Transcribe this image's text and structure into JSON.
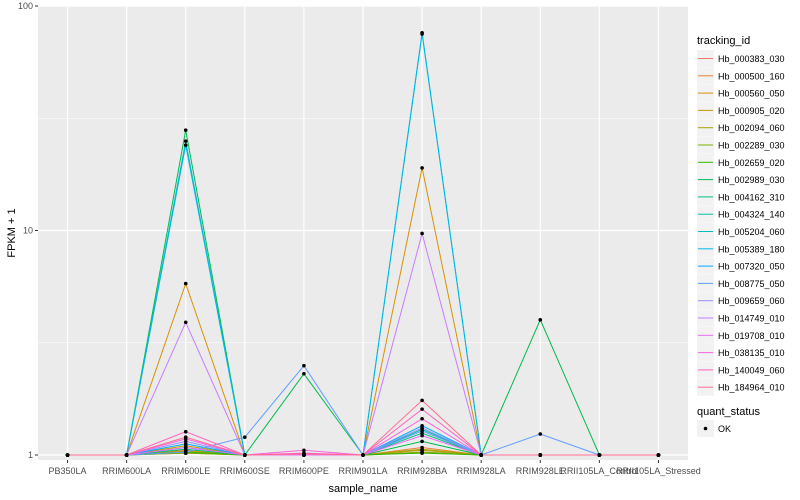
{
  "chart_data": {
    "type": "line",
    "title": "",
    "xlabel": "sample_name",
    "ylabel": "FPKM + 1",
    "y_scale": "log10",
    "ylim": [
      0.95,
      100
    ],
    "y_ticks": [
      {
        "value": 1,
        "label": "1"
      },
      {
        "value": 10,
        "label": "10"
      },
      {
        "value": 100,
        "label": "100"
      }
    ],
    "grid": true,
    "legend_position": "right",
    "categories": [
      "PB350LA",
      "RRIM600LA",
      "RRIM600LE",
      "RRIM600SE",
      "RRIM600PE",
      "RRIM901LA",
      "RRIM928BA",
      "RRIM928LA",
      "RRIM928LE",
      "RRII105LA_Control",
      "RRII105LA_Stressed"
    ],
    "legend_title": "tracking_id",
    "series": [
      {
        "name": "Hb_000383_030",
        "color": "#F8766D",
        "values": [
          1,
          1,
          1.02,
          1,
          1.01,
          1,
          1.03,
          1,
          1,
          1,
          1
        ]
      },
      {
        "name": "Hb_000500_160",
        "color": "#EA8331",
        "values": [
          1,
          1,
          1.05,
          1,
          1,
          1,
          1.08,
          1,
          1,
          1,
          1
        ]
      },
      {
        "name": "Hb_000560_050",
        "color": "#D89000",
        "values": [
          1,
          1,
          5.8,
          1,
          1,
          1,
          19,
          1,
          1,
          1,
          1
        ]
      },
      {
        "name": "Hb_000905_020",
        "color": "#C09B00",
        "values": [
          1,
          1,
          1.1,
          1,
          1,
          1,
          1.05,
          1,
          1,
          1,
          1
        ]
      },
      {
        "name": "Hb_002094_060",
        "color": "#A3A500",
        "values": [
          1,
          1,
          1.04,
          1,
          1,
          1,
          1.06,
          1,
          1,
          1,
          1
        ]
      },
      {
        "name": "Hb_002289_030",
        "color": "#7CAE00",
        "values": [
          1,
          1,
          1.02,
          1,
          1,
          1,
          1.03,
          1,
          1,
          1,
          1
        ]
      },
      {
        "name": "Hb_002659_020",
        "color": "#39B600",
        "values": [
          1,
          1,
          1.03,
          1,
          1,
          1,
          1.02,
          1,
          1,
          1,
          1
        ]
      },
      {
        "name": "Hb_002989_030",
        "color": "#00BB4E",
        "values": [
          1,
          1,
          28,
          1,
          2.3,
          1,
          1.15,
          1,
          4,
          1,
          1
        ]
      },
      {
        "name": "Hb_004162_310",
        "color": "#00BF7D",
        "values": [
          1,
          1,
          1.06,
          1,
          1,
          1,
          1.25,
          1,
          1,
          1,
          1
        ]
      },
      {
        "name": "Hb_004324_140",
        "color": "#00C1A3",
        "values": [
          1,
          1,
          1.08,
          1,
          1,
          1,
          1.3,
          1,
          1,
          1,
          1
        ]
      },
      {
        "name": "Hb_005204_060",
        "color": "#00BFC4",
        "values": [
          1,
          1,
          25,
          1,
          1,
          1,
          75,
          1,
          1,
          1,
          1
        ]
      },
      {
        "name": "Hb_005389_180",
        "color": "#00B8E7",
        "values": [
          1,
          1,
          24,
          1,
          1,
          1,
          76,
          1,
          1,
          1,
          1
        ]
      },
      {
        "name": "Hb_007320_050",
        "color": "#00A9FF",
        "values": [
          1,
          1,
          1.12,
          1,
          1,
          1,
          1.35,
          1,
          1,
          1,
          1
        ]
      },
      {
        "name": "Hb_008775_050",
        "color": "#619CFF",
        "values": [
          1,
          1,
          1.03,
          1.2,
          2.5,
          1,
          1.28,
          1,
          1.24,
          1,
          1
        ]
      },
      {
        "name": "Hb_009659_060",
        "color": "#9590FF",
        "values": [
          1,
          1,
          1.15,
          1,
          1,
          1,
          1.32,
          1,
          1,
          1,
          1
        ]
      },
      {
        "name": "Hb_014749_010",
        "color": "#C77CFF",
        "values": [
          1,
          1,
          3.9,
          1,
          1,
          1,
          9.7,
          1,
          1,
          1,
          1
        ]
      },
      {
        "name": "Hb_019708_010",
        "color": "#E76BF3",
        "values": [
          1,
          1,
          1.08,
          1,
          1,
          1,
          1.22,
          1,
          1,
          1,
          1
        ]
      },
      {
        "name": "Hb_038135_010",
        "color": "#FA62DB",
        "values": [
          1,
          1,
          1.18,
          1,
          1.05,
          1,
          1.45,
          1,
          1,
          1,
          1
        ]
      },
      {
        "name": "Hb_140049_060",
        "color": "#FF62BC",
        "values": [
          1,
          1,
          1.27,
          1,
          1.02,
          1,
          1.6,
          1,
          1,
          1,
          1
        ]
      },
      {
        "name": "Hb_184964_010",
        "color": "#FF6C91",
        "values": [
          1,
          1,
          1.2,
          1,
          1.01,
          1,
          1.75,
          1,
          1,
          1,
          1
        ]
      }
    ],
    "shape_legend": {
      "title": "quant_status",
      "items": [
        {
          "label": "OK"
        }
      ]
    }
  }
}
